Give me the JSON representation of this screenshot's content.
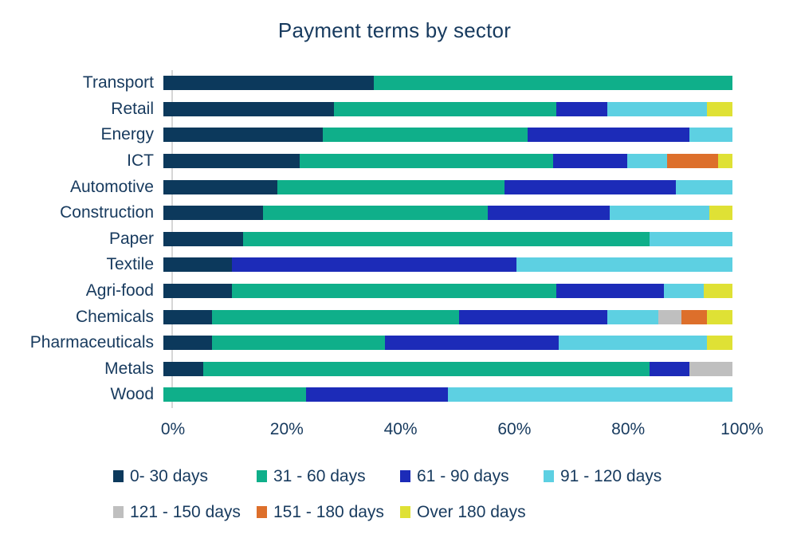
{
  "title": "Payment terms by sector",
  "chart_data": {
    "type": "bar",
    "orientation": "horizontal",
    "stacked": true,
    "unit": "percent",
    "title": "Payment terms by sector",
    "categories": [
      "Transport",
      "Retail",
      "Energy",
      "ICT",
      "Automotive",
      "Construction",
      "Paper",
      "Textile",
      "Agri-food",
      "Chemicals",
      "Pharmaceuticals",
      "Metals",
      "Wood"
    ],
    "series": [
      {
        "name": "0- 30 days",
        "color": "#0C395C",
        "values": [
          37,
          30,
          28,
          24,
          20,
          17.5,
          14,
          12,
          12,
          8.5,
          8.5,
          7,
          0
        ]
      },
      {
        "name": "31 - 60 days",
        "color": "#0FAF8A",
        "values": [
          63,
          39,
          36,
          44.5,
          40,
          39.5,
          71.5,
          0,
          57,
          43.5,
          30.5,
          78.5,
          25
        ]
      },
      {
        "name": "61 - 90 days",
        "color": "#1C2BB8",
        "values": [
          0,
          9,
          28.5,
          13,
          30,
          21.5,
          0,
          50,
          19,
          26,
          30.5,
          7,
          25
        ]
      },
      {
        "name": "91 - 120 days",
        "color": "#5DD0E2",
        "values": [
          0,
          17.5,
          7.5,
          7,
          10,
          17.5,
          14.5,
          38,
          7,
          9,
          26,
          0,
          50
        ]
      },
      {
        "name": "121 - 150 days",
        "color": "#BFBFBF",
        "values": [
          0,
          0,
          0,
          0,
          0,
          0,
          0,
          0,
          0,
          4,
          0,
          7.5,
          0
        ]
      },
      {
        "name": "151 - 180 days",
        "color": "#DD6F2B",
        "values": [
          0,
          0,
          0,
          9,
          0,
          0,
          0,
          0,
          0,
          4.5,
          0,
          0,
          0
        ]
      },
      {
        "name": "Over 180 days",
        "color": "#DFE135",
        "values": [
          0,
          4.5,
          0,
          2.5,
          0,
          4,
          0,
          0,
          5,
          4.5,
          4.5,
          0,
          0
        ]
      }
    ],
    "x_axis": {
      "min": 0,
      "max": 100,
      "ticks": [
        "0%",
        "20%",
        "40%",
        "60%",
        "80%",
        "100%"
      ]
    },
    "grid": false,
    "legend_position": "bottom"
  }
}
